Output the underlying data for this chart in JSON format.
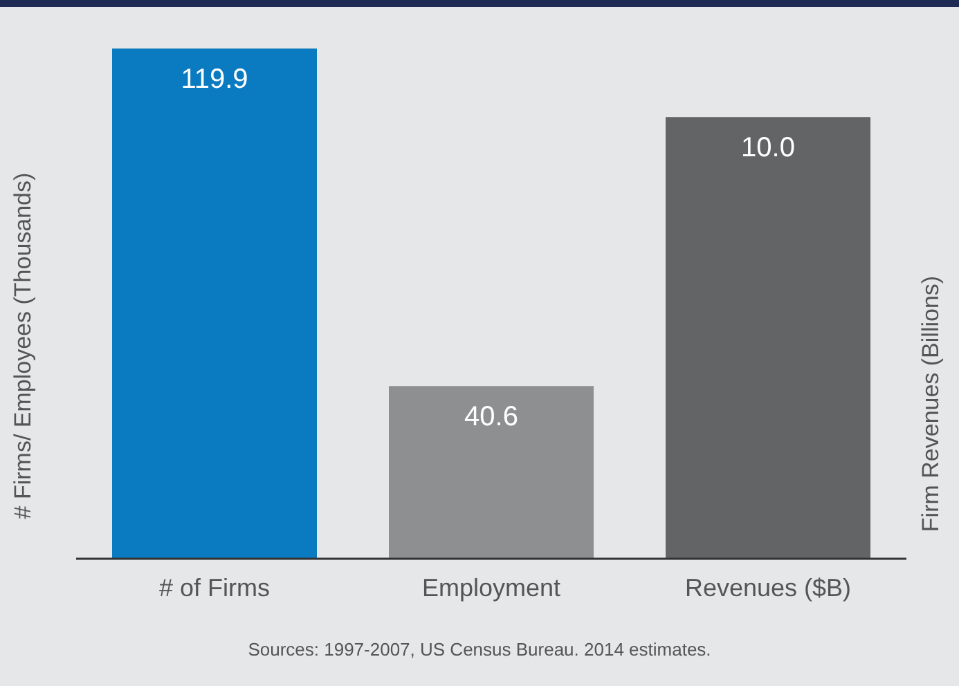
{
  "chart_data": {
    "type": "bar",
    "categories": [
      "# of Firms",
      "Employment",
      "Revenues ($B)"
    ],
    "series": [
      {
        "values": [
          119.9,
          40.6,
          null
        ],
        "value_labels": [
          "119.9",
          "40.6",
          null
        ],
        "colors": [
          "#0a7bc1",
          "#8e8f91",
          null
        ]
      },
      {
        "values": [
          null,
          null,
          10.0
        ],
        "value_labels": [
          null,
          null,
          "10.0"
        ],
        "color": "#636466",
        "axis": "y2"
      }
    ],
    "ylabel": "# Firms/ Employees (Thousands)",
    "y2label": "Firm Revenues (Billions)",
    "tick_labels": "x",
    "annotations": [
      "Sources: 1997-2007, US Census Bureau. 2014 estimates."
    ]
  }
}
